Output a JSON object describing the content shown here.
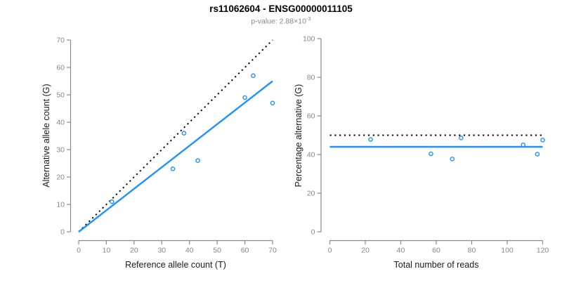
{
  "header": {
    "title": "rs11062604 - ENSG00000011105",
    "subtitle_prefix": "p-value: 2.88×10",
    "subtitle_exponent": "-3"
  },
  "colors": {
    "accent_blue": "#1E90FF",
    "line_black": "#000000",
    "axis_gray": "#8a8a8a",
    "tick_label_gray": "#878787",
    "axis_label_dark": "#1a1a1a",
    "subtitle_gray": "#878787",
    "background": "#ffffff"
  },
  "chart_data": [
    {
      "type": "scatter",
      "xlabel": "Reference allele count (T)",
      "ylabel": "Alternative allele count (G)",
      "xlim": [
        0,
        70
      ],
      "ylim": [
        0,
        70
      ],
      "xticks": [
        0,
        10,
        20,
        30,
        40,
        50,
        60,
        70
      ],
      "yticks": [
        0,
        10,
        20,
        30,
        40,
        50,
        60,
        70
      ],
      "grid": false,
      "legend": "none",
      "points": [
        [
          12,
          11
        ],
        [
          34,
          23
        ],
        [
          38,
          36
        ],
        [
          43,
          26
        ],
        [
          60,
          49
        ],
        [
          63,
          57
        ],
        [
          70,
          47
        ]
      ],
      "lines": [
        {
          "name": "expected-identity",
          "style": "dotted",
          "color": "#000000",
          "from": [
            0,
            0
          ],
          "to": [
            70,
            70
          ]
        },
        {
          "name": "fitted-allelic-ratio",
          "style": "solid",
          "color": "#1E90FF",
          "from": [
            0,
            0
          ],
          "to": [
            70,
            55
          ]
        }
      ]
    },
    {
      "type": "scatter",
      "xlabel": "Total number of reads",
      "ylabel": "Percentage alternative (G)",
      "xlim": [
        0,
        120
      ],
      "ylim": [
        0,
        100
      ],
      "xticks": [
        0,
        20,
        40,
        60,
        80,
        100,
        120
      ],
      "yticks": [
        0,
        20,
        40,
        60,
        80,
        100
      ],
      "grid": false,
      "legend": "none",
      "points": [
        [
          23,
          47.8
        ],
        [
          57,
          40.4
        ],
        [
          69,
          37.7
        ],
        [
          74,
          48.6
        ],
        [
          109,
          45.0
        ],
        [
          117,
          40.2
        ],
        [
          120,
          47.5
        ]
      ],
      "lines": [
        {
          "name": "expected-50-percent",
          "style": "dotted",
          "color": "#000000",
          "from": [
            0,
            50
          ],
          "to": [
            120,
            50
          ]
        },
        {
          "name": "observed-mean-percent",
          "style": "solid",
          "color": "#1E90FF",
          "from": [
            0,
            44
          ],
          "to": [
            120,
            44
          ]
        }
      ]
    }
  ]
}
